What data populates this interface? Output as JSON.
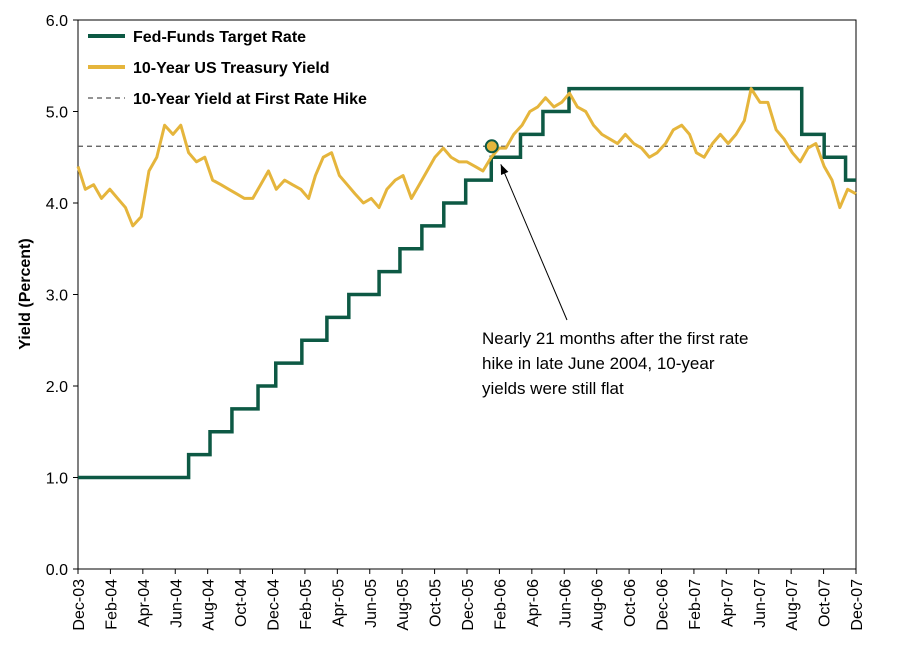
{
  "chart_data": {
    "type": "line",
    "title": "",
    "xlabel": "",
    "ylabel": "Yield (Percent)",
    "ylim": [
      0,
      6
    ],
    "yticks": [
      "0.0",
      "1.0",
      "2.0",
      "3.0",
      "4.0",
      "5.0",
      "6.0"
    ],
    "xticks": [
      "Dec-03",
      "Feb-04",
      "Apr-04",
      "Jun-04",
      "Aug-04",
      "Oct-04",
      "Dec-04",
      "Feb-05",
      "Apr-05",
      "Jun-05",
      "Aug-05",
      "Oct-05",
      "Dec-05",
      "Feb-06",
      "Apr-06",
      "Jun-06",
      "Aug-06",
      "Oct-06",
      "Dec-06",
      "Feb-07",
      "Apr-07",
      "Jun-07",
      "Aug-07",
      "Oct-07",
      "Dec-07"
    ],
    "x_range": [
      "2003-12-01",
      "2007-12-31"
    ],
    "grid": false,
    "legend_position": "top-left",
    "colors": {
      "fed_funds": "#0d5944",
      "treasury": "#e5b53c",
      "reference": "#555555"
    },
    "series": [
      {
        "name": "Fed-Funds Target Rate",
        "kind": "step",
        "points": [
          [
            "2003-12-01",
            1.0
          ],
          [
            "2004-06-30",
            1.25
          ],
          [
            "2004-08-10",
            1.5
          ],
          [
            "2004-09-21",
            1.75
          ],
          [
            "2004-11-10",
            2.0
          ],
          [
            "2004-12-14",
            2.25
          ],
          [
            "2005-02-02",
            2.5
          ],
          [
            "2005-03-22",
            2.75
          ],
          [
            "2005-05-03",
            3.0
          ],
          [
            "2005-06-30",
            3.25
          ],
          [
            "2005-08-09",
            3.5
          ],
          [
            "2005-09-20",
            3.75
          ],
          [
            "2005-11-01",
            4.0
          ],
          [
            "2005-12-13",
            4.25
          ],
          [
            "2006-01-31",
            4.5
          ],
          [
            "2006-03-28",
            4.75
          ],
          [
            "2006-05-10",
            5.0
          ],
          [
            "2006-06-29",
            5.25
          ],
          [
            "2007-09-18",
            4.75
          ],
          [
            "2007-10-31",
            4.5
          ],
          [
            "2007-12-11",
            4.25
          ],
          [
            "2007-12-31",
            4.25
          ]
        ]
      },
      {
        "name": "10-Year US Treasury Yield",
        "kind": "line",
        "points": [
          [
            "2003-12-01",
            4.4
          ],
          [
            "2003-12-15",
            4.15
          ],
          [
            "2003-12-31",
            4.2
          ],
          [
            "2004-01-15",
            4.05
          ],
          [
            "2004-01-31",
            4.15
          ],
          [
            "2004-02-15",
            4.05
          ],
          [
            "2004-03-01",
            3.95
          ],
          [
            "2004-03-15",
            3.75
          ],
          [
            "2004-03-31",
            3.85
          ],
          [
            "2004-04-15",
            4.35
          ],
          [
            "2004-04-30",
            4.5
          ],
          [
            "2004-05-15",
            4.85
          ],
          [
            "2004-05-31",
            4.75
          ],
          [
            "2004-06-15",
            4.85
          ],
          [
            "2004-06-30",
            4.55
          ],
          [
            "2004-07-15",
            4.45
          ],
          [
            "2004-07-31",
            4.5
          ],
          [
            "2004-08-15",
            4.25
          ],
          [
            "2004-08-31",
            4.2
          ],
          [
            "2004-09-15",
            4.15
          ],
          [
            "2004-09-30",
            4.1
          ],
          [
            "2004-10-15",
            4.05
          ],
          [
            "2004-10-31",
            4.05
          ],
          [
            "2004-11-15",
            4.2
          ],
          [
            "2004-11-30",
            4.35
          ],
          [
            "2004-12-15",
            4.15
          ],
          [
            "2004-12-31",
            4.25
          ],
          [
            "2005-01-15",
            4.2
          ],
          [
            "2005-01-31",
            4.15
          ],
          [
            "2005-02-15",
            4.05
          ],
          [
            "2005-02-28",
            4.3
          ],
          [
            "2005-03-15",
            4.5
          ],
          [
            "2005-03-31",
            4.55
          ],
          [
            "2005-04-15",
            4.3
          ],
          [
            "2005-04-30",
            4.2
          ],
          [
            "2005-05-15",
            4.1
          ],
          [
            "2005-05-31",
            4.0
          ],
          [
            "2005-06-15",
            4.05
          ],
          [
            "2005-06-30",
            3.95
          ],
          [
            "2005-07-15",
            4.15
          ],
          [
            "2005-07-31",
            4.25
          ],
          [
            "2005-08-15",
            4.3
          ],
          [
            "2005-08-31",
            4.05
          ],
          [
            "2005-09-15",
            4.2
          ],
          [
            "2005-09-30",
            4.35
          ],
          [
            "2005-10-15",
            4.5
          ],
          [
            "2005-10-31",
            4.6
          ],
          [
            "2005-11-15",
            4.5
          ],
          [
            "2005-11-30",
            4.45
          ],
          [
            "2005-12-15",
            4.45
          ],
          [
            "2005-12-31",
            4.4
          ],
          [
            "2006-01-15",
            4.35
          ],
          [
            "2006-01-31",
            4.5
          ],
          [
            "2006-02-15",
            4.6
          ],
          [
            "2006-02-28",
            4.6
          ],
          [
            "2006-03-15",
            4.75
          ],
          [
            "2006-03-31",
            4.85
          ],
          [
            "2006-04-15",
            5.0
          ],
          [
            "2006-04-30",
            5.05
          ],
          [
            "2006-05-15",
            5.15
          ],
          [
            "2006-05-31",
            5.05
          ],
          [
            "2006-06-15",
            5.1
          ],
          [
            "2006-06-30",
            5.2
          ],
          [
            "2006-07-15",
            5.05
          ],
          [
            "2006-07-31",
            5.0
          ],
          [
            "2006-08-15",
            4.85
          ],
          [
            "2006-08-31",
            4.75
          ],
          [
            "2006-09-15",
            4.7
          ],
          [
            "2006-09-30",
            4.65
          ],
          [
            "2006-10-15",
            4.75
          ],
          [
            "2006-10-31",
            4.65
          ],
          [
            "2006-11-15",
            4.6
          ],
          [
            "2006-11-30",
            4.5
          ],
          [
            "2006-12-15",
            4.55
          ],
          [
            "2006-12-31",
            4.65
          ],
          [
            "2007-01-15",
            4.8
          ],
          [
            "2007-01-31",
            4.85
          ],
          [
            "2007-02-15",
            4.75
          ],
          [
            "2007-02-28",
            4.55
          ],
          [
            "2007-03-15",
            4.5
          ],
          [
            "2007-03-31",
            4.65
          ],
          [
            "2007-04-15",
            4.75
          ],
          [
            "2007-04-30",
            4.65
          ],
          [
            "2007-05-15",
            4.75
          ],
          [
            "2007-05-31",
            4.9
          ],
          [
            "2007-06-13",
            5.25
          ],
          [
            "2007-06-30",
            5.1
          ],
          [
            "2007-07-15",
            5.1
          ],
          [
            "2007-07-31",
            4.8
          ],
          [
            "2007-08-15",
            4.7
          ],
          [
            "2007-08-31",
            4.55
          ],
          [
            "2007-09-15",
            4.45
          ],
          [
            "2007-09-30",
            4.6
          ],
          [
            "2007-10-15",
            4.65
          ],
          [
            "2007-10-31",
            4.4
          ],
          [
            "2007-11-15",
            4.25
          ],
          [
            "2007-11-30",
            3.95
          ],
          [
            "2007-12-15",
            4.15
          ],
          [
            "2007-12-31",
            4.1
          ]
        ]
      },
      {
        "name": "10-Year Yield at First Rate Hike",
        "kind": "reference",
        "value": 4.62
      }
    ],
    "marker": {
      "date": "2006-02-01",
      "value": 4.62
    },
    "annotation": {
      "lines": [
        "Nearly  21 months after the first rate",
        "hike  in late June 2004, 10-year",
        "yields were still flat"
      ]
    }
  }
}
